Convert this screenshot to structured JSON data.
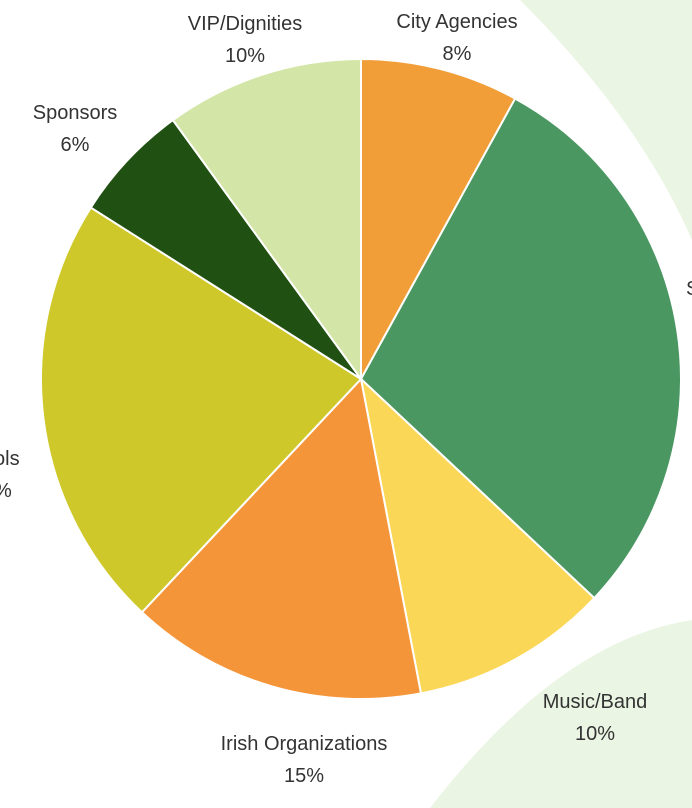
{
  "chart_data": {
    "type": "pie",
    "title": "",
    "start_angle_deg": 0,
    "direction": "clockwise",
    "slices": [
      {
        "label": "City Agencies",
        "percent_label": "8%",
        "value": 8,
        "color": "#F19E38"
      },
      {
        "label": "S",
        "percent_label": "",
        "value": 29,
        "color": "#4A9762"
      },
      {
        "label": "Music/Band",
        "percent_label": "10%",
        "value": 10,
        "color": "#FBD757"
      },
      {
        "label": "Irish Organizations",
        "percent_label": "15%",
        "value": 15,
        "color": "#F5953A"
      },
      {
        "label": "ols",
        "percent_label": "%",
        "value": 22,
        "color": "#CFC82A"
      },
      {
        "label": "Sponsors",
        "percent_label": "6%",
        "value": 6,
        "color": "#215112"
      },
      {
        "label": "VIP/Dignities",
        "percent_label": "10%",
        "value": 10,
        "color": "#D3E6A7"
      }
    ],
    "background_accent": "#EAF5E3"
  }
}
